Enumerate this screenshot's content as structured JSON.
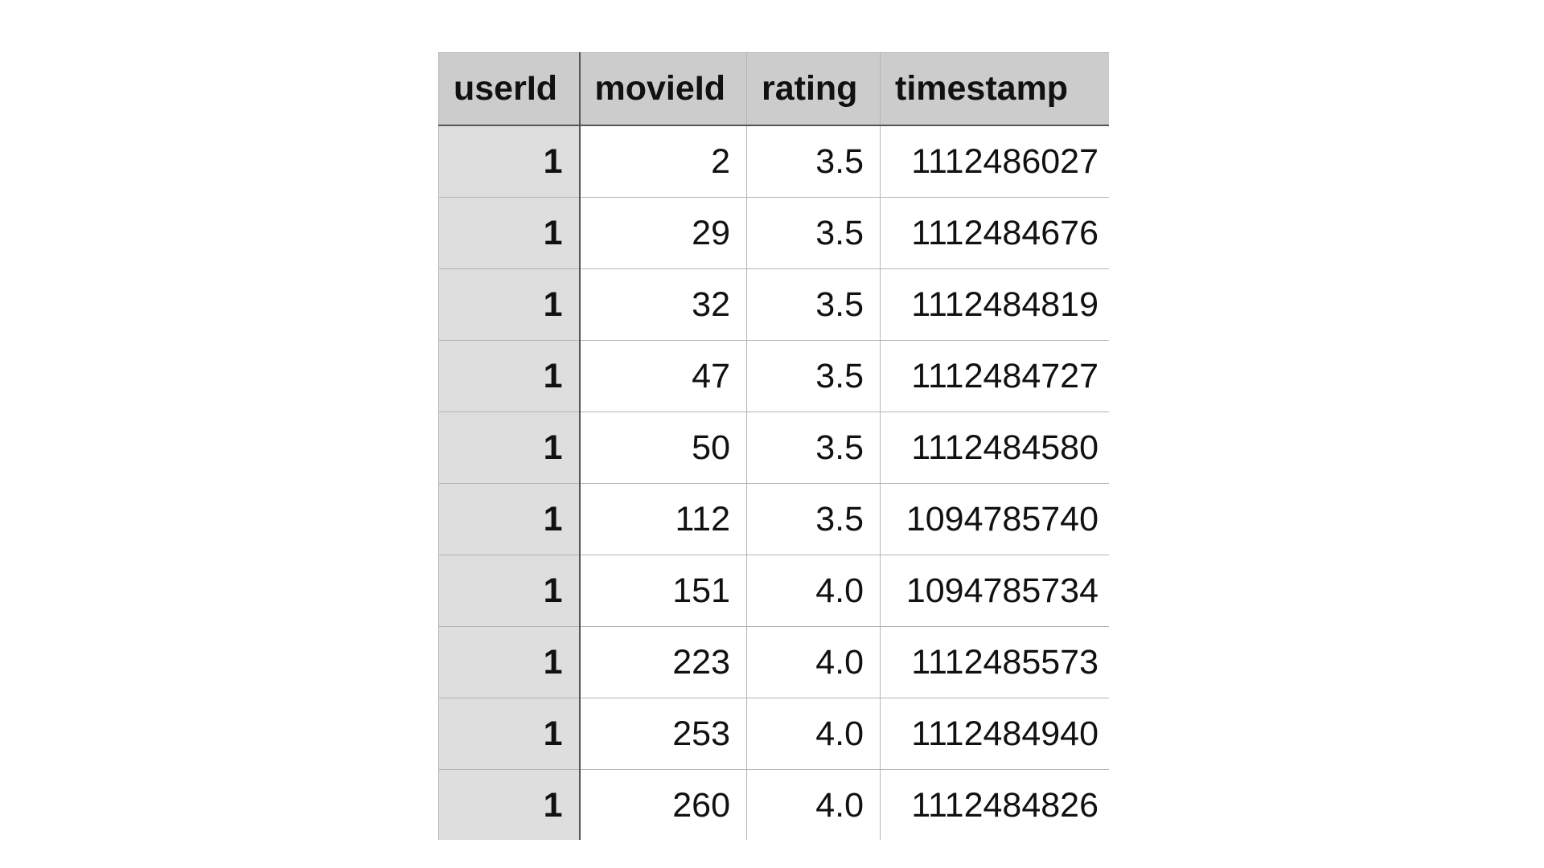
{
  "table": {
    "headers": [
      "userId",
      "movieId",
      "rating",
      "timestamp"
    ],
    "rows": [
      [
        "1",
        "2",
        "3.5",
        "1112486027"
      ],
      [
        "1",
        "29",
        "3.5",
        "1112484676"
      ],
      [
        "1",
        "32",
        "3.5",
        "1112484819"
      ],
      [
        "1",
        "47",
        "3.5",
        "1112484727"
      ],
      [
        "1",
        "50",
        "3.5",
        "1112484580"
      ],
      [
        "1",
        "112",
        "3.5",
        "1094785740"
      ],
      [
        "1",
        "151",
        "4.0",
        "1094785734"
      ],
      [
        "1",
        "223",
        "4.0",
        "1112485573"
      ],
      [
        "1",
        "253",
        "4.0",
        "1112484940"
      ],
      [
        "1",
        "260",
        "4.0",
        "1112484826"
      ]
    ]
  },
  "colors": {
    "header_bg": "#cccccc",
    "row_header_bg": "#dedede",
    "grid_line": "#b4b4b4",
    "strong_line": "#555555"
  }
}
